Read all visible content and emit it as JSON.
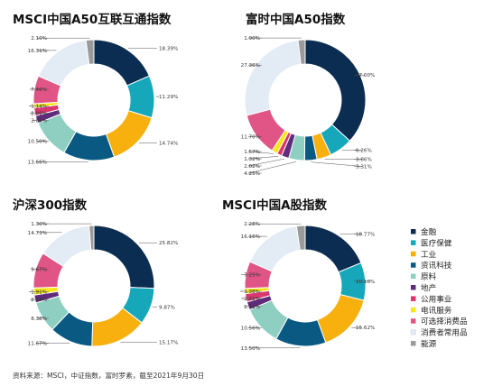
{
  "colors": {
    "金融": "#0b2d51",
    "医疗保健": "#16a7ba",
    "工业": "#f7b00e",
    "资讯科技": "#0a5983",
    "原料": "#8fcfc2",
    "地产": "#5f2c7b",
    "公用事业": "#d9376f",
    "电讯服务": "#f6e716",
    "可选择消费品": "#e05585",
    "消费者常用品": "#e3ebf5",
    "能源": "#9a9a9a"
  },
  "legend": [
    "金融",
    "医疗保健",
    "工业",
    "资讯科技",
    "原料",
    "地产",
    "公用事业",
    "电讯服务",
    "可选择消费品",
    "消费者常用品",
    "能源"
  ],
  "source_note": "资料来源：MSCI，中证指数，富时罗素，截至2021年9月30日",
  "chart_data": [
    {
      "type": "pie",
      "title": "MSCI中国A50互联互通指数",
      "slices": [
        {
          "category": "金融",
          "value": 18.39,
          "label": "18.39%"
        },
        {
          "category": "医疗保健",
          "value": 11.29,
          "label": "11.29%"
        },
        {
          "category": "工业",
          "value": 14.74,
          "label": "14.74%"
        },
        {
          "category": "资讯科技",
          "value": 13.66,
          "label": "13.66%"
        },
        {
          "category": "原料",
          "value": 10.5,
          "label": "10.50%"
        },
        {
          "category": "地产",
          "value": 2.06,
          "label": "2.06%"
        },
        {
          "category": "公用事业",
          "value": 2.09,
          "label": "2.09%"
        },
        {
          "category": "电讯服务",
          "value": 1.14,
          "label": "1.14%"
        },
        {
          "category": "可选择消费品",
          "value": 7.46,
          "label": "7.46%"
        },
        {
          "category": "消费者常用品",
          "value": 16.31,
          "label": "16.31%"
        },
        {
          "category": "能源",
          "value": 2.1,
          "label": "2.10%"
        }
      ]
    },
    {
      "type": "pie",
      "title": "富时中国A50指数",
      "slices": [
        {
          "category": "金融",
          "value": 37.0,
          "label": "37.00%"
        },
        {
          "category": "医疗保健",
          "value": 6.26,
          "label": "6.26%"
        },
        {
          "category": "工业",
          "value": 3.86,
          "label": "3.86%"
        },
        {
          "category": "资讯科技",
          "value": 3.31,
          "label": "3.31%"
        },
        {
          "category": "原料",
          "value": 4.25,
          "label": "4.25%"
        },
        {
          "category": "地产",
          "value": 2.02,
          "label": "2.02%"
        },
        {
          "category": "公用事业",
          "value": 1.32,
          "label": "1.32%"
        },
        {
          "category": "电讯服务",
          "value": 1.57,
          "label": "1.57%"
        },
        {
          "category": "可选择消费品",
          "value": 11.7,
          "label": "11.70%"
        },
        {
          "category": "消费者常用品",
          "value": 27.36,
          "label": "27.36%"
        },
        {
          "category": "能源",
          "value": 1.9,
          "label": "1.90%"
        }
      ]
    },
    {
      "type": "pie",
      "title": "沪深300指数",
      "slices": [
        {
          "category": "金融",
          "value": 25.82,
          "label": "25.82%"
        },
        {
          "category": "医疗保健",
          "value": 9.87,
          "label": "9.87%"
        },
        {
          "category": "工业",
          "value": 15.17,
          "label": "15.17%"
        },
        {
          "category": "资讯科技",
          "value": 11.67,
          "label": "11.67%"
        },
        {
          "category": "原料",
          "value": 8.38,
          "label": "8.38%"
        },
        {
          "category": "地产",
          "value": 2.14,
          "label": "2.14%"
        },
        {
          "category": "电讯服务",
          "value": 1.91,
          "label": "1.91%"
        },
        {
          "category": "可选择消费品",
          "value": 9.67,
          "label": "9.67%"
        },
        {
          "category": "消费者常用品",
          "value": 14.73,
          "label": "14.73%"
        },
        {
          "category": "能源",
          "value": 1.3,
          "label": "1.30%"
        }
      ]
    },
    {
      "type": "pie",
      "title": "MSCI中国A股指数",
      "slices": [
        {
          "category": "金融",
          "value": 18.77,
          "label": "18.77%"
        },
        {
          "category": "医疗保健",
          "value": 10.1,
          "label": "10.10%"
        },
        {
          "category": "工业",
          "value": 15.62,
          "label": "15.62%"
        },
        {
          "category": "资讯科技",
          "value": 13.5,
          "label": "13.50%"
        },
        {
          "category": "原料",
          "value": 10.56,
          "label": "10.56%"
        },
        {
          "category": "地产",
          "value": 2.19,
          "label": "2.19%"
        },
        {
          "category": "公用事业",
          "value": 2.21,
          "label": "2.21%"
        },
        {
          "category": "电讯服务",
          "value": 1.38,
          "label": "1.38%"
        },
        {
          "category": "可选择消费品",
          "value": 7.25,
          "label": "7.25%"
        },
        {
          "category": "消费者常用品",
          "value": 16.16,
          "label": "16.16%"
        },
        {
          "category": "能源",
          "value": 2.28,
          "label": "2.28%"
        }
      ]
    }
  ]
}
